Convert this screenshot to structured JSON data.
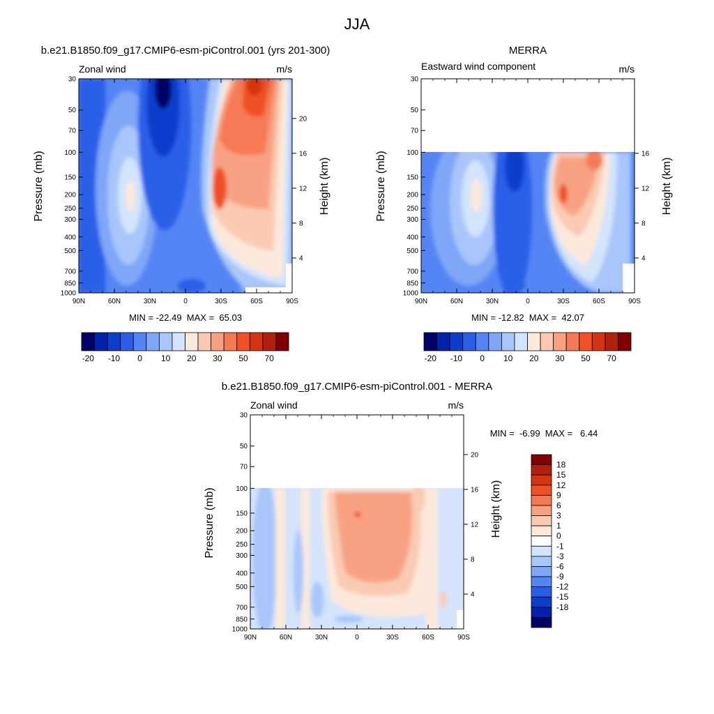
{
  "main_title": "JJA",
  "chart_data": [
    {
      "type": "heatmap",
      "title": "b.e21.B1850.f09_g17.CMIP6-esm-piControl.001 (yrs 201-300)",
      "left_label": "Zonal wind",
      "units": "m/s",
      "ylabel": "Pressure (mb)",
      "ylabel_right": "Height (km)",
      "x_ticks": [
        "90N",
        "60N",
        "30N",
        "0",
        "30S",
        "60S",
        "90S"
      ],
      "y_ticks": [
        "30",
        "50",
        "70",
        "100",
        "150",
        "200",
        "250",
        "300",
        "400",
        "500",
        "700",
        "850",
        "1000"
      ],
      "height_ticks": [
        "20",
        "16",
        "12",
        "8",
        "4"
      ],
      "pressure_range": [
        1000,
        30
      ],
      "stats": "MIN = -22.49  MAX =  65.03",
      "colorbar_labels": [
        "-20",
        "-10",
        "0",
        "10",
        "20",
        "30",
        "50",
        "70"
      ],
      "colors": [
        "#000066",
        "#0022aa",
        "#0c3ecc",
        "#2a5ee8",
        "#5585f4",
        "#7fa6f7",
        "#a9c6fa",
        "#d3e4fc",
        "#fde9dc",
        "#fbcab2",
        "#f8a283",
        "#f57a54",
        "#f05025",
        "#d63410",
        "#b0200a",
        "#800000"
      ],
      "features": [
        {
          "kind": "westerly jet",
          "lat": "35S",
          "level_mb": 200,
          "value": 65
        },
        {
          "kind": "easterly jet",
          "lat": "20N",
          "level_mb": 30,
          "value": -22
        },
        {
          "kind": "westerly maximum",
          "lat": "45N",
          "level_mb": 200,
          "value": 15
        }
      ]
    },
    {
      "type": "heatmap",
      "title": "MERRA",
      "left_label": "Eastward wind component",
      "units": "m/s",
      "ylabel": "Pressure (mb)",
      "ylabel_right": "Height (km)",
      "x_ticks": [
        "90N",
        "60N",
        "30N",
        "0",
        "30S",
        "60S",
        "90S"
      ],
      "y_ticks": [
        "30",
        "50",
        "70",
        "100",
        "150",
        "200",
        "250",
        "300",
        "400",
        "500",
        "700",
        "850",
        "1000"
      ],
      "height_ticks": [
        "16",
        "12",
        "8",
        "4"
      ],
      "pressure_range": [
        1000,
        30
      ],
      "data_top_mb": 100,
      "stats": "MIN = -12.82  MAX =  42.07",
      "colorbar_labels": [
        "-20",
        "-10",
        "0",
        "10",
        "20",
        "30",
        "50",
        "70"
      ],
      "colors": [
        "#000066",
        "#0022aa",
        "#0c3ecc",
        "#2a5ee8",
        "#5585f4",
        "#7fa6f7",
        "#a9c6fa",
        "#d3e4fc",
        "#fde9dc",
        "#fbcab2",
        "#f8a283",
        "#f57a54",
        "#f05025",
        "#d63410",
        "#b0200a",
        "#800000"
      ],
      "features": [
        {
          "kind": "westerly jet",
          "lat": "30S",
          "level_mb": 200,
          "value": 42
        },
        {
          "kind": "easterly",
          "lat": "15N",
          "level_mb": 100,
          "value": -12
        },
        {
          "kind": "westerly maximum",
          "lat": "45N",
          "level_mb": 200,
          "value": 15
        }
      ]
    },
    {
      "type": "heatmap",
      "title": "b.e21.B1850.f09_g17.CMIP6-esm-piControl.001 - MERRA",
      "left_label": "Zonal wind",
      "units": "m/s",
      "ylabel": "Pressure (mb)",
      "ylabel_right": "Height (km)",
      "x_ticks": [
        "90N",
        "60N",
        "30N",
        "0",
        "30S",
        "60S",
        "90S"
      ],
      "y_ticks": [
        "30",
        "50",
        "70",
        "100",
        "150",
        "200",
        "250",
        "300",
        "400",
        "500",
        "700",
        "850",
        "1000"
      ],
      "height_ticks": [
        "20",
        "16",
        "12",
        "8",
        "4"
      ],
      "pressure_range": [
        1000,
        30
      ],
      "data_top_mb": 100,
      "stats": "MIN =  -6.99  MAX =   6.44",
      "colorbar_labels": [
        "18",
        "15",
        "12",
        "9",
        "6",
        "3",
        "1",
        "0",
        "-1",
        "-3",
        "-6",
        "-9",
        "-12",
        "-15",
        "-18"
      ],
      "colors": [
        "#800000",
        "#b0200a",
        "#d63410",
        "#f05025",
        "#f57a54",
        "#f8a283",
        "#fbcab2",
        "#fde9dc",
        "#ffffff",
        "#d3e4fc",
        "#a9c6fa",
        "#7fa6f7",
        "#5585f4",
        "#2a5ee8",
        "#0c3ecc",
        "#0022aa",
        "#000066"
      ]
    }
  ]
}
